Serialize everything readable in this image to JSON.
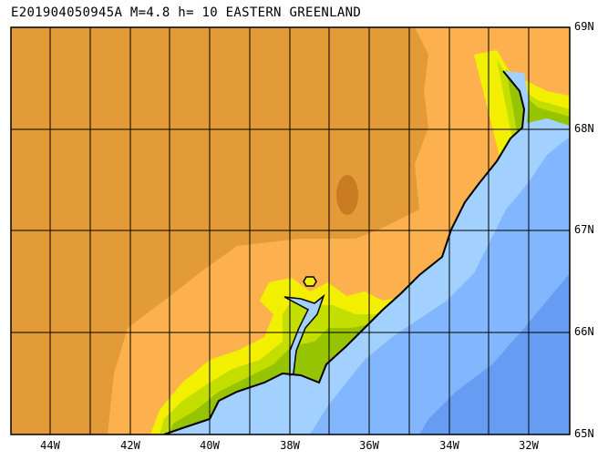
{
  "title": "E201904050945A M=4.8 h= 10 EASTERN GREENLAND",
  "lat_labels": [
    "69N",
    "68N",
    "67N",
    "66N",
    "65N"
  ],
  "lon_labels": [
    "44W",
    "42W",
    "40W",
    "38W",
    "36W",
    "34W",
    "32W"
  ],
  "colors": {
    "land_high": "#e39a38",
    "land_mid": "#fcb04e",
    "land_low_yellow": "#f2f000",
    "land_low_green": "#c4de00",
    "land_coast_green": "#96c400",
    "peak": "#c97b22",
    "ocean_shallow": "#a2d0ff",
    "ocean_mid": "#82b6ff",
    "ocean_deep": "#669cf2"
  },
  "epicenter_icon": "hexagon-marker"
}
